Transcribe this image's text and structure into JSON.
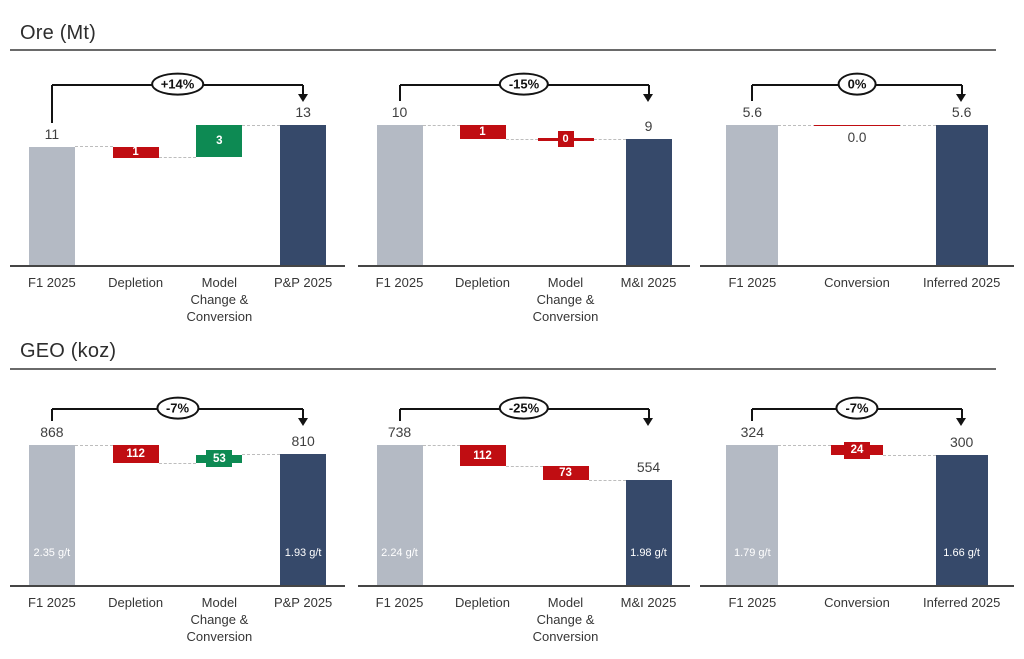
{
  "page": {
    "background": "#ffffff"
  },
  "colors": {
    "start_bar": "#b4bac4",
    "end_bar": "#36496a",
    "decrease": "#c00d12",
    "increase": "#0d8a53",
    "axis": "#454545",
    "connector": "#bdbdbd",
    "bracket": "#131313",
    "label_text": "#3f3f3f"
  },
  "sections": [
    {
      "title": "Ore (Mt)"
    },
    {
      "title": "GEO (koz)"
    }
  ],
  "chart_data": [
    {
      "type": "waterfall",
      "group": "Ore (Mt)",
      "change_label": "+14%",
      "columns": [
        {
          "category": "F1 2025",
          "role": "start",
          "value": 11,
          "label": "11"
        },
        {
          "category": "Depletion",
          "role": "decrease",
          "value": -1,
          "label": "1"
        },
        {
          "category": "Model\nChange &\nConversion",
          "role": "increase",
          "value": 3,
          "label": "3"
        },
        {
          "category": "P&P 2025",
          "role": "end",
          "value": 13,
          "label": "13"
        }
      ]
    },
    {
      "type": "waterfall",
      "group": "Ore (Mt)",
      "change_label": "-15%",
      "columns": [
        {
          "category": "F1 2025",
          "role": "start",
          "value": 10,
          "label": "10"
        },
        {
          "category": "Depletion",
          "role": "decrease",
          "value": -1,
          "label": "1"
        },
        {
          "category": "Model\nChange &\nConversion",
          "role": "decrease",
          "value": 0,
          "label": "0",
          "variant": "zero-marker"
        },
        {
          "category": "M&I 2025",
          "role": "end",
          "value": 9,
          "label": "9"
        }
      ]
    },
    {
      "type": "waterfall",
      "group": "Ore (Mt)",
      "change_label": "0%",
      "columns": [
        {
          "category": "F1 2025",
          "role": "start",
          "value": 5.6,
          "label": "5.6"
        },
        {
          "category": "Conversion",
          "role": "decrease",
          "value": 0,
          "label": "0.0",
          "variant": "zero-text"
        },
        {
          "category": "Inferred 2025",
          "role": "end",
          "value": 5.6,
          "label": "5.6"
        }
      ]
    },
    {
      "type": "waterfall",
      "group": "GEO (koz)",
      "change_label": "-7%",
      "columns": [
        {
          "category": "F1 2025",
          "role": "start",
          "value": 868,
          "label": "868",
          "grade": "2.35 g/t"
        },
        {
          "category": "Depletion",
          "role": "decrease",
          "value": -112,
          "label": "112"
        },
        {
          "category": "Model\nChange &\nConversion",
          "role": "increase",
          "value": 53,
          "label": "53",
          "variant": "tab"
        },
        {
          "category": "P&P 2025",
          "role": "end",
          "value": 810,
          "label": "810",
          "grade": "1.93 g/t"
        }
      ]
    },
    {
      "type": "waterfall",
      "group": "GEO (koz)",
      "change_label": "-25%",
      "columns": [
        {
          "category": "F1 2025",
          "role": "start",
          "value": 738,
          "label": "738",
          "grade": "2.24 g/t"
        },
        {
          "category": "Depletion",
          "role": "decrease",
          "value": -112,
          "label": "112"
        },
        {
          "category": "Model\nChange &\nConversion",
          "role": "decrease",
          "value": -73,
          "label": "73"
        },
        {
          "category": "M&I 2025",
          "role": "end",
          "value": 554,
          "label": "554",
          "grade": "1.98 g/t"
        }
      ]
    },
    {
      "type": "waterfall",
      "group": "GEO (koz)",
      "change_label": "-7%",
      "columns": [
        {
          "category": "F1 2025",
          "role": "start",
          "value": 324,
          "label": "324",
          "grade": "1.79 g/t"
        },
        {
          "category": "Conversion",
          "role": "decrease",
          "value": -24,
          "label": "24",
          "variant": "tab"
        },
        {
          "category": "Inferred 2025",
          "role": "end",
          "value": 300,
          "label": "300",
          "grade": "1.66 g/t"
        }
      ]
    }
  ]
}
